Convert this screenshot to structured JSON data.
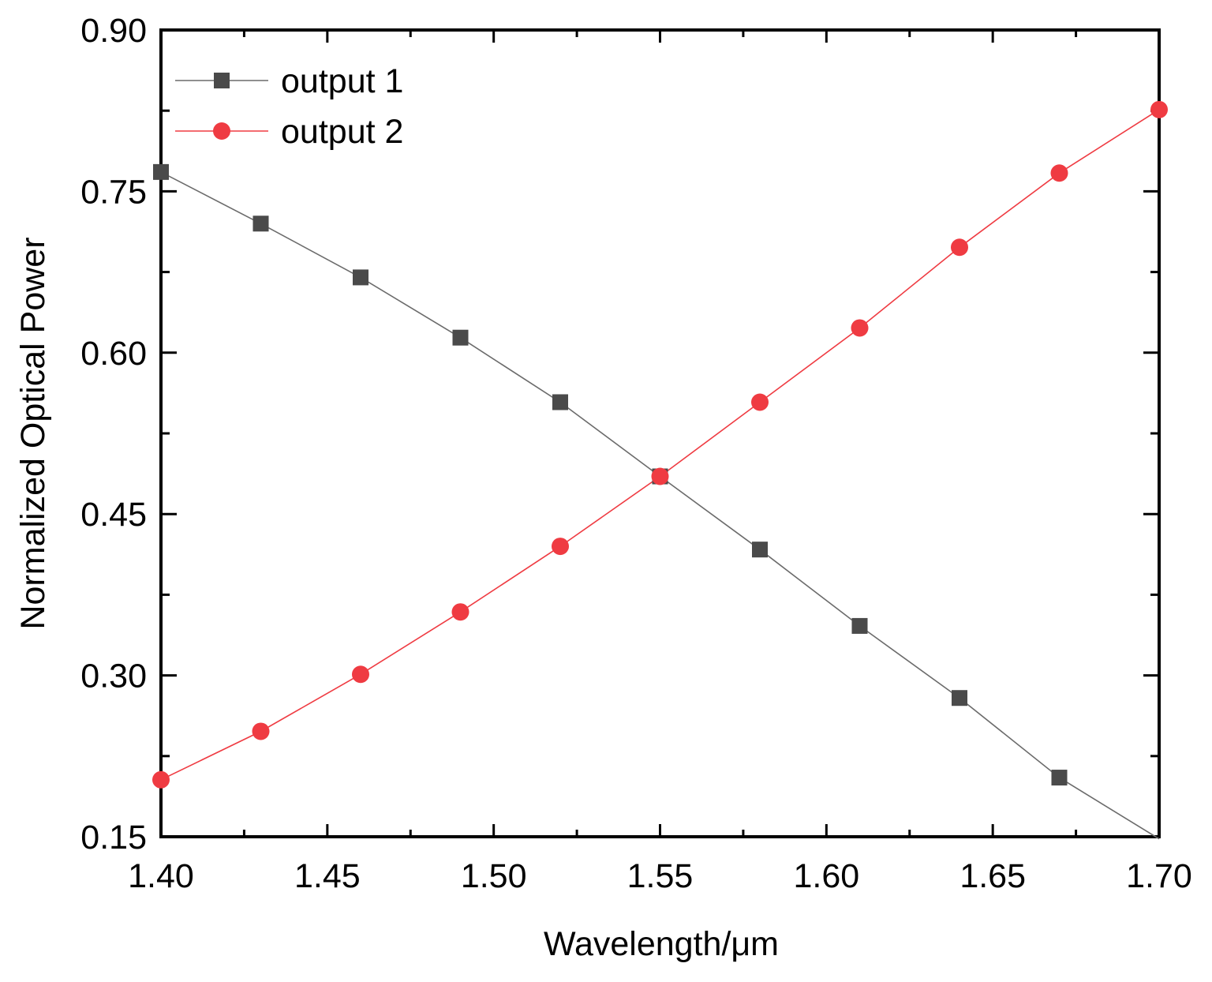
{
  "chart_data": {
    "type": "line",
    "title": "",
    "xlabel": "Wavelength/μm",
    "ylabel": "Normalized Optical Power",
    "xlim": [
      1.4,
      1.7
    ],
    "ylim": [
      0.15,
      0.9
    ],
    "xticks": [
      1.4,
      1.45,
      1.5,
      1.55,
      1.6,
      1.65,
      1.7
    ],
    "xtick_labels": [
      "1.40",
      "1.45",
      "1.50",
      "1.55",
      "1.60",
      "1.65",
      "1.70"
    ],
    "yticks": [
      0.15,
      0.3,
      0.45,
      0.6,
      0.75,
      0.9
    ],
    "ytick_labels": [
      "0.15",
      "0.30",
      "0.45",
      "0.60",
      "0.75",
      "0.90"
    ],
    "grid": false,
    "legend_position": "top-left",
    "series": [
      {
        "name": "output 1",
        "color": "#4a4a4a",
        "line_color": "#6b6b6b",
        "marker": "square",
        "x": [
          1.4,
          1.43,
          1.46,
          1.49,
          1.52,
          1.55,
          1.58,
          1.61,
          1.64,
          1.67
        ],
        "y": [
          0.768,
          0.72,
          0.67,
          0.614,
          0.554,
          0.485,
          0.417,
          0.346,
          0.279,
          0.205
        ],
        "line_end": [
          1.7,
          0.148
        ]
      },
      {
        "name": "output 2",
        "color": "#ef3b42",
        "line_color": "#ef3b42",
        "marker": "circle",
        "x": [
          1.4,
          1.43,
          1.46,
          1.49,
          1.52,
          1.55,
          1.58,
          1.61,
          1.64,
          1.67,
          1.7
        ],
        "y": [
          0.203,
          0.248,
          0.301,
          0.359,
          0.42,
          0.485,
          0.554,
          0.623,
          0.698,
          0.767,
          0.826
        ]
      }
    ]
  }
}
